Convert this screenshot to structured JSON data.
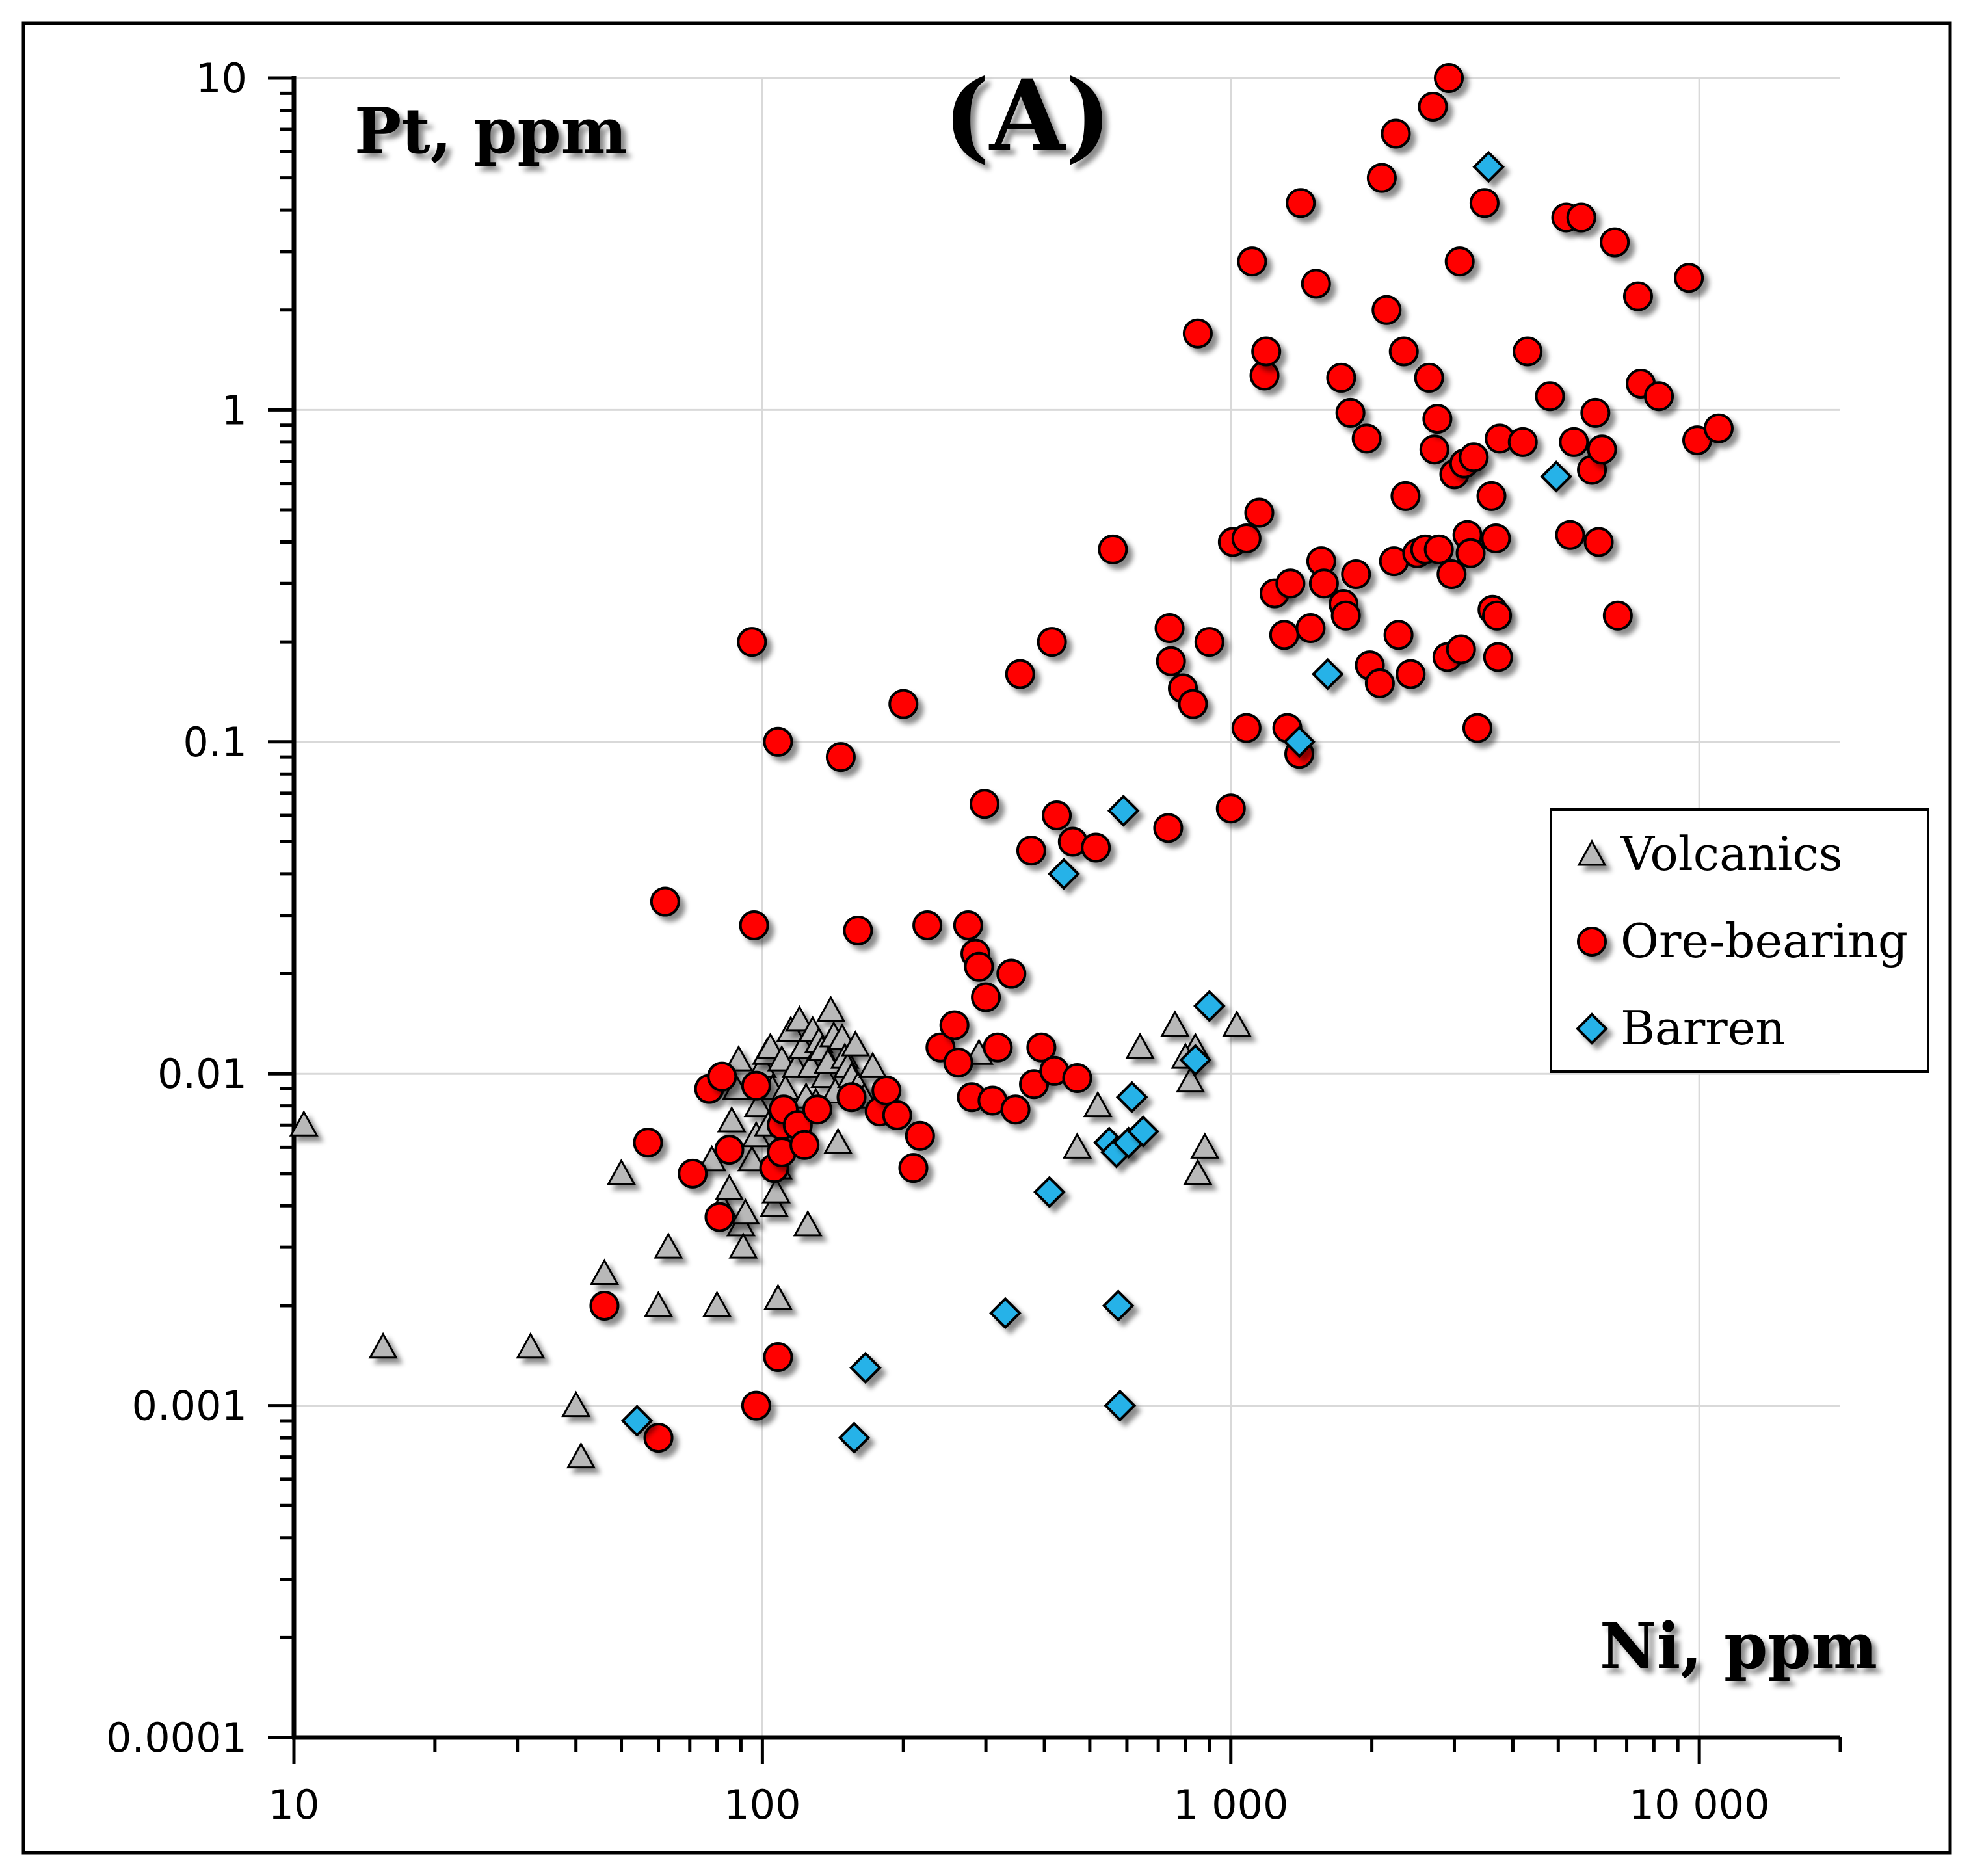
{
  "chart_data": {
    "type": "scatter",
    "panel_label": "(A)",
    "xlabel": "Ni, ppm",
    "ylabel": "Pt, ppm",
    "xscale": "log",
    "yscale": "log",
    "xlim": [
      10,
      20000
    ],
    "ylim": [
      0.0001,
      10
    ],
    "grid": true,
    "legend_position": "right",
    "x_tick_labels": [
      {
        "value": 10,
        "label": "10"
      },
      {
        "value": 100,
        "label": "100"
      },
      {
        "value": 1000,
        "label": "1 000"
      },
      {
        "value": 10000,
        "label": "10 000"
      }
    ],
    "y_tick_labels": [
      {
        "value": 10,
        "label": "10"
      },
      {
        "value": 1,
        "label": "1"
      },
      {
        "value": 0.1,
        "label": "0.1"
      },
      {
        "value": 0.01,
        "label": "0.01"
      },
      {
        "value": 0.001,
        "label": "0.001"
      },
      {
        "value": 0.0001,
        "label": "0.0001"
      }
    ],
    "series": [
      {
        "name": "Volcanics",
        "marker": "triangle",
        "color": "#b8b8b8",
        "points": [
          [
            10.5,
            0.007
          ],
          [
            15.5,
            0.0015
          ],
          [
            32,
            0.0015
          ],
          [
            40,
            0.001
          ],
          [
            41,
            0.0007
          ],
          [
            46,
            0.0025
          ],
          [
            50,
            0.005
          ],
          [
            60,
            0.002
          ],
          [
            63,
            0.003
          ],
          [
            80,
            0.002
          ],
          [
            78,
            0.0055
          ],
          [
            82,
            0.004
          ],
          [
            85,
            0.0045
          ],
          [
            86,
            0.0072
          ],
          [
            88,
            0.009
          ],
          [
            89,
            0.011
          ],
          [
            90,
            0.0035
          ],
          [
            91,
            0.003
          ],
          [
            92,
            0.0038
          ],
          [
            95,
            0.0055
          ],
          [
            97,
            0.0065
          ],
          [
            98,
            0.008
          ],
          [
            100,
            0.0105
          ],
          [
            102,
            0.0115
          ],
          [
            103,
            0.007
          ],
          [
            104,
            0.012
          ],
          [
            105,
            0.009
          ],
          [
            106,
            0.004
          ],
          [
            107,
            0.0044
          ],
          [
            108,
            0.0052
          ],
          [
            110,
            0.011
          ],
          [
            112,
            0.009
          ],
          [
            113,
            0.0065
          ],
          [
            115,
            0.0135
          ],
          [
            116,
            0.0075
          ],
          [
            118,
            0.0105
          ],
          [
            120,
            0.0145
          ],
          [
            122,
            0.012
          ],
          [
            124,
            0.0085
          ],
          [
            125,
            0.0035
          ],
          [
            127,
            0.0105
          ],
          [
            128,
            0.0135
          ],
          [
            130,
            0.0082
          ],
          [
            132,
            0.0125
          ],
          [
            134,
            0.0118
          ],
          [
            136,
            0.0098
          ],
          [
            138,
            0.0108
          ],
          [
            140,
            0.0155
          ],
          [
            142,
            0.013
          ],
          [
            143,
            0.0088
          ],
          [
            145,
            0.0062
          ],
          [
            148,
            0.0128
          ],
          [
            150,
            0.0112
          ],
          [
            152,
            0.0105
          ],
          [
            155,
            0.0098
          ],
          [
            158,
            0.0122
          ],
          [
            160,
            0.0092
          ],
          [
            165,
            0.0085
          ],
          [
            172,
            0.0105
          ],
          [
            108,
            0.0021
          ],
          [
            290,
            0.0115
          ],
          [
            520,
            0.008
          ],
          [
            470,
            0.006
          ],
          [
            640,
            0.012
          ],
          [
            760,
            0.014
          ],
          [
            820,
            0.0095
          ],
          [
            840,
            0.012
          ],
          [
            850,
            0.005
          ],
          [
            880,
            0.006
          ],
          [
            1030,
            0.014
          ],
          [
            800,
            0.0112
          ]
        ]
      },
      {
        "name": "Ore-bearing",
        "marker": "circle",
        "color": "#ff0000",
        "points": [
          [
            46,
            0.002
          ],
          [
            57,
            0.0062
          ],
          [
            60,
            0.0008
          ],
          [
            62,
            0.033
          ],
          [
            71,
            0.005
          ],
          [
            77,
            0.009
          ],
          [
            81,
            0.0037
          ],
          [
            82,
            0.0098
          ],
          [
            85,
            0.0059
          ],
          [
            95,
            0.2
          ],
          [
            96,
            0.028
          ],
          [
            97,
            0.001
          ],
          [
            97,
            0.0092
          ],
          [
            106,
            0.0052
          ],
          [
            108,
            0.1
          ],
          [
            108,
            0.0014
          ],
          [
            110,
            0.007
          ],
          [
            110,
            0.0058
          ],
          [
            111,
            0.0078
          ],
          [
            119,
            0.007
          ],
          [
            123,
            0.0061
          ],
          [
            131,
            0.0078
          ],
          [
            147,
            0.09
          ],
          [
            155,
            0.0085
          ],
          [
            160,
            0.027
          ],
          [
            178,
            0.0077
          ],
          [
            184,
            0.0089
          ],
          [
            194,
            0.0075
          ],
          [
            200,
            0.13
          ],
          [
            210,
            0.0052
          ],
          [
            217,
            0.0065
          ],
          [
            225,
            0.028
          ],
          [
            240,
            0.012
          ],
          [
            257,
            0.014
          ],
          [
            262,
            0.0108
          ],
          [
            275,
            0.028
          ],
          [
            280,
            0.0085
          ],
          [
            285,
            0.023
          ],
          [
            290,
            0.021
          ],
          [
            298,
            0.065
          ],
          [
            300,
            0.017
          ],
          [
            310,
            0.0083
          ],
          [
            318,
            0.012
          ],
          [
            340,
            0.02
          ],
          [
            347,
            0.0078
          ],
          [
            355,
            0.16
          ],
          [
            375,
            0.047
          ],
          [
            380,
            0.0093
          ],
          [
            394,
            0.012
          ],
          [
            415,
            0.2
          ],
          [
            420,
            0.0102
          ],
          [
            425,
            0.06
          ],
          [
            460,
            0.05
          ],
          [
            470,
            0.0097
          ],
          [
            515,
            0.048
          ],
          [
            560,
            0.38
          ],
          [
            735,
            0.055
          ],
          [
            740,
            0.22
          ],
          [
            745,
            0.175
          ],
          [
            790,
            0.145
          ],
          [
            830,
            0.13
          ],
          [
            850,
            1.7
          ],
          [
            900,
            0.2
          ],
          [
            1000,
            0.063
          ],
          [
            1010,
            0.4
          ],
          [
            1080,
            0.11
          ],
          [
            1080,
            0.41
          ],
          [
            1110,
            2.8
          ],
          [
            1150,
            0.49
          ],
          [
            1180,
            1.27
          ],
          [
            1190,
            1.5
          ],
          [
            1240,
            0.28
          ],
          [
            1300,
            0.21
          ],
          [
            1320,
            0.11
          ],
          [
            1340,
            0.3
          ],
          [
            1400,
            0.092
          ],
          [
            1410,
            4.2
          ],
          [
            1480,
            0.22
          ],
          [
            1520,
            2.4
          ],
          [
            1560,
            0.35
          ],
          [
            1580,
            0.3
          ],
          [
            1720,
            1.25
          ],
          [
            1740,
            0.26
          ],
          [
            1760,
            0.24
          ],
          [
            1800,
            0.98
          ],
          [
            1850,
            0.32
          ],
          [
            1950,
            0.82
          ],
          [
            1980,
            0.17
          ],
          [
            2080,
            0.15
          ],
          [
            2100,
            5.0
          ],
          [
            2150,
            2.0
          ],
          [
            2230,
            0.35
          ],
          [
            2250,
            6.8
          ],
          [
            2280,
            0.21
          ],
          [
            2340,
            1.5
          ],
          [
            2360,
            0.55
          ],
          [
            2420,
            0.16
          ],
          [
            2500,
            0.37
          ],
          [
            2600,
            0.38
          ],
          [
            2650,
            1.25
          ],
          [
            2700,
            8.2
          ],
          [
            2720,
            0.76
          ],
          [
            2760,
            0.94
          ],
          [
            2780,
            0.38
          ],
          [
            2900,
            0.18
          ],
          [
            2920,
            10
          ],
          [
            2960,
            0.32
          ],
          [
            3000,
            0.64
          ],
          [
            3080,
            2.8
          ],
          [
            3100,
            0.19
          ],
          [
            3150,
            0.69
          ],
          [
            3200,
            0.42
          ],
          [
            3250,
            0.37
          ],
          [
            3300,
            0.72
          ],
          [
            3360,
            0.11
          ],
          [
            3480,
            4.2
          ],
          [
            3600,
            0.55
          ],
          [
            3620,
            0.25
          ],
          [
            3680,
            0.41
          ],
          [
            3700,
            0.24
          ],
          [
            3720,
            0.18
          ],
          [
            3750,
            0.82
          ],
          [
            4200,
            0.8
          ],
          [
            4300,
            1.5
          ],
          [
            4800,
            1.1
          ],
          [
            5200,
            3.8
          ],
          [
            5300,
            0.42
          ],
          [
            5400,
            0.8
          ],
          [
            5600,
            3.8
          ],
          [
            5900,
            0.66
          ],
          [
            6000,
            0.98
          ],
          [
            6100,
            0.4
          ],
          [
            6200,
            0.76
          ],
          [
            6600,
            3.2
          ],
          [
            6700,
            0.24
          ],
          [
            7400,
            2.2
          ],
          [
            7500,
            1.2
          ],
          [
            8200,
            1.1
          ],
          [
            9500,
            2.5
          ],
          [
            9900,
            0.81
          ],
          [
            11000,
            0.88
          ]
        ]
      },
      {
        "name": "Barren",
        "marker": "diamond",
        "color": "#27b2e8",
        "points": [
          [
            54,
            0.0009
          ],
          [
            157,
            0.0008
          ],
          [
            166,
            0.0013
          ],
          [
            330,
            0.0019
          ],
          [
            410,
            0.0044
          ],
          [
            440,
            0.04
          ],
          [
            550,
            0.0062
          ],
          [
            570,
            0.0058
          ],
          [
            575,
            0.002
          ],
          [
            580,
            0.001
          ],
          [
            590,
            0.062
          ],
          [
            605,
            0.0062
          ],
          [
            615,
            0.0085
          ],
          [
            650,
            0.0067
          ],
          [
            840,
            0.011
          ],
          [
            900,
            0.016
          ],
          [
            1400,
            0.1
          ],
          [
            1610,
            0.16
          ],
          [
            3550,
            5.4
          ],
          [
            4950,
            0.63
          ]
        ]
      }
    ]
  }
}
